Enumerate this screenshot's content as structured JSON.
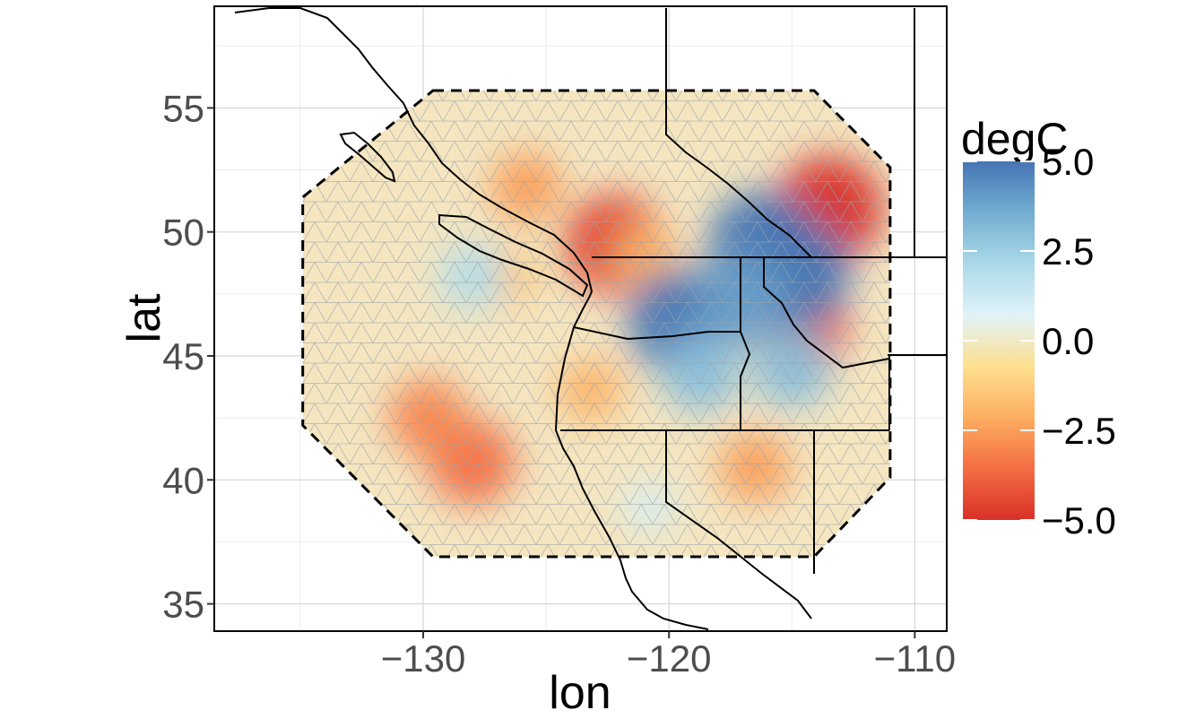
{
  "chart_data": {
    "type": "heatmap",
    "xlabel": "lon",
    "ylabel": "lat",
    "x_ticks": [
      -130,
      -120,
      -110
    ],
    "y_ticks": [
      35,
      40,
      45,
      50,
      55
    ],
    "xlim": [
      -138.5,
      -108.7
    ],
    "ylim": [
      33.9,
      59.1
    ],
    "grid": true,
    "overlay": "triangular mesh within dashed boundary, state/province borders and coastline",
    "legend": {
      "title": "degC",
      "placement": "right",
      "range": [
        -5.0,
        5.0
      ],
      "ticks": [
        {
          "value": 5.0,
          "label": "5.0"
        },
        {
          "value": 2.5,
          "label": "2.5"
        },
        {
          "value": 0.0,
          "label": "0.0"
        },
        {
          "value": -2.5,
          "label": "−2.5"
        },
        {
          "value": -5.0,
          "label": "−5.0"
        }
      ],
      "colors": [
        "#d73027",
        "#f46d43",
        "#fdae61",
        "#fee090",
        "#e0f3f8",
        "#abd9e9",
        "#74add1",
        "#4575b4"
      ]
    },
    "field_anomalies": [
      {
        "lon": -113.5,
        "lat": 50.9,
        "value": -5.0
      },
      {
        "lon": -122.2,
        "lat": 49.5,
        "value": -4.5
      },
      {
        "lon": -114.6,
        "lat": 46.1,
        "value": -4.0
      },
      {
        "lon": -128.0,
        "lat": 40.7,
        "value": -3.5
      },
      {
        "lon": -129.8,
        "lat": 42.5,
        "value": -3.0
      },
      {
        "lon": -125.8,
        "lat": 51.8,
        "value": -2.5
      },
      {
        "lon": -116.5,
        "lat": 40.5,
        "value": -2.5
      },
      {
        "lon": -123.2,
        "lat": 43.6,
        "value": -2.0
      },
      {
        "lon": -121.0,
        "lat": 49.0,
        "value": -2.0
      },
      {
        "lon": -126.5,
        "lat": 48.2,
        "value": -1.5
      },
      {
        "lon": -116.2,
        "lat": 49.5,
        "value": 5.0
      },
      {
        "lon": -114.8,
        "lat": 48.3,
        "value": 5.0
      },
      {
        "lon": -119.5,
        "lat": 46.4,
        "value": 5.0
      },
      {
        "lon": -117.0,
        "lat": 47.3,
        "value": 4.0
      },
      {
        "lon": -118.7,
        "lat": 44.3,
        "value": 3.0
      },
      {
        "lon": -115.0,
        "lat": 44.5,
        "value": 3.0
      },
      {
        "lon": -128.0,
        "lat": 48.2,
        "value": 2.0
      },
      {
        "lon": -120.8,
        "lat": 38.9,
        "value": 1.0
      }
    ]
  }
}
